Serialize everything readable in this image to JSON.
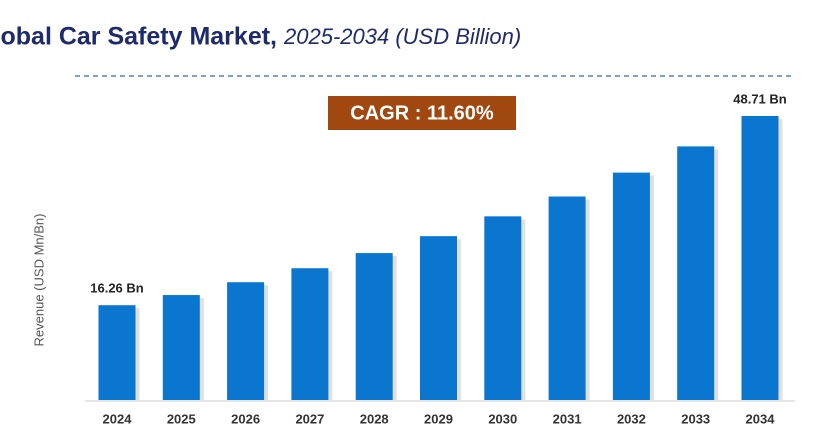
{
  "chart_data": {
    "type": "bar",
    "title": "Global Car Safety Market,",
    "subtitle": "2025-2034 (USD Billion)",
    "annotation": "CAGR : 11.60%",
    "y_label": "Revenue (USD Mn/Bn)",
    "categories": [
      "2024",
      "2025",
      "2026",
      "2027",
      "2028",
      "2029",
      "2030",
      "2031",
      "2032",
      "2033",
      "2034"
    ],
    "values": [
      16.26,
      18.0,
      20.2,
      22.6,
      25.2,
      28.1,
      31.5,
      34.9,
      39.0,
      43.5,
      48.71
    ],
    "value_labels": [
      "16.26 Bn",
      null,
      null,
      null,
      null,
      null,
      null,
      null,
      null,
      null,
      "48.71 Bn"
    ],
    "color": "#0b76d0"
  }
}
